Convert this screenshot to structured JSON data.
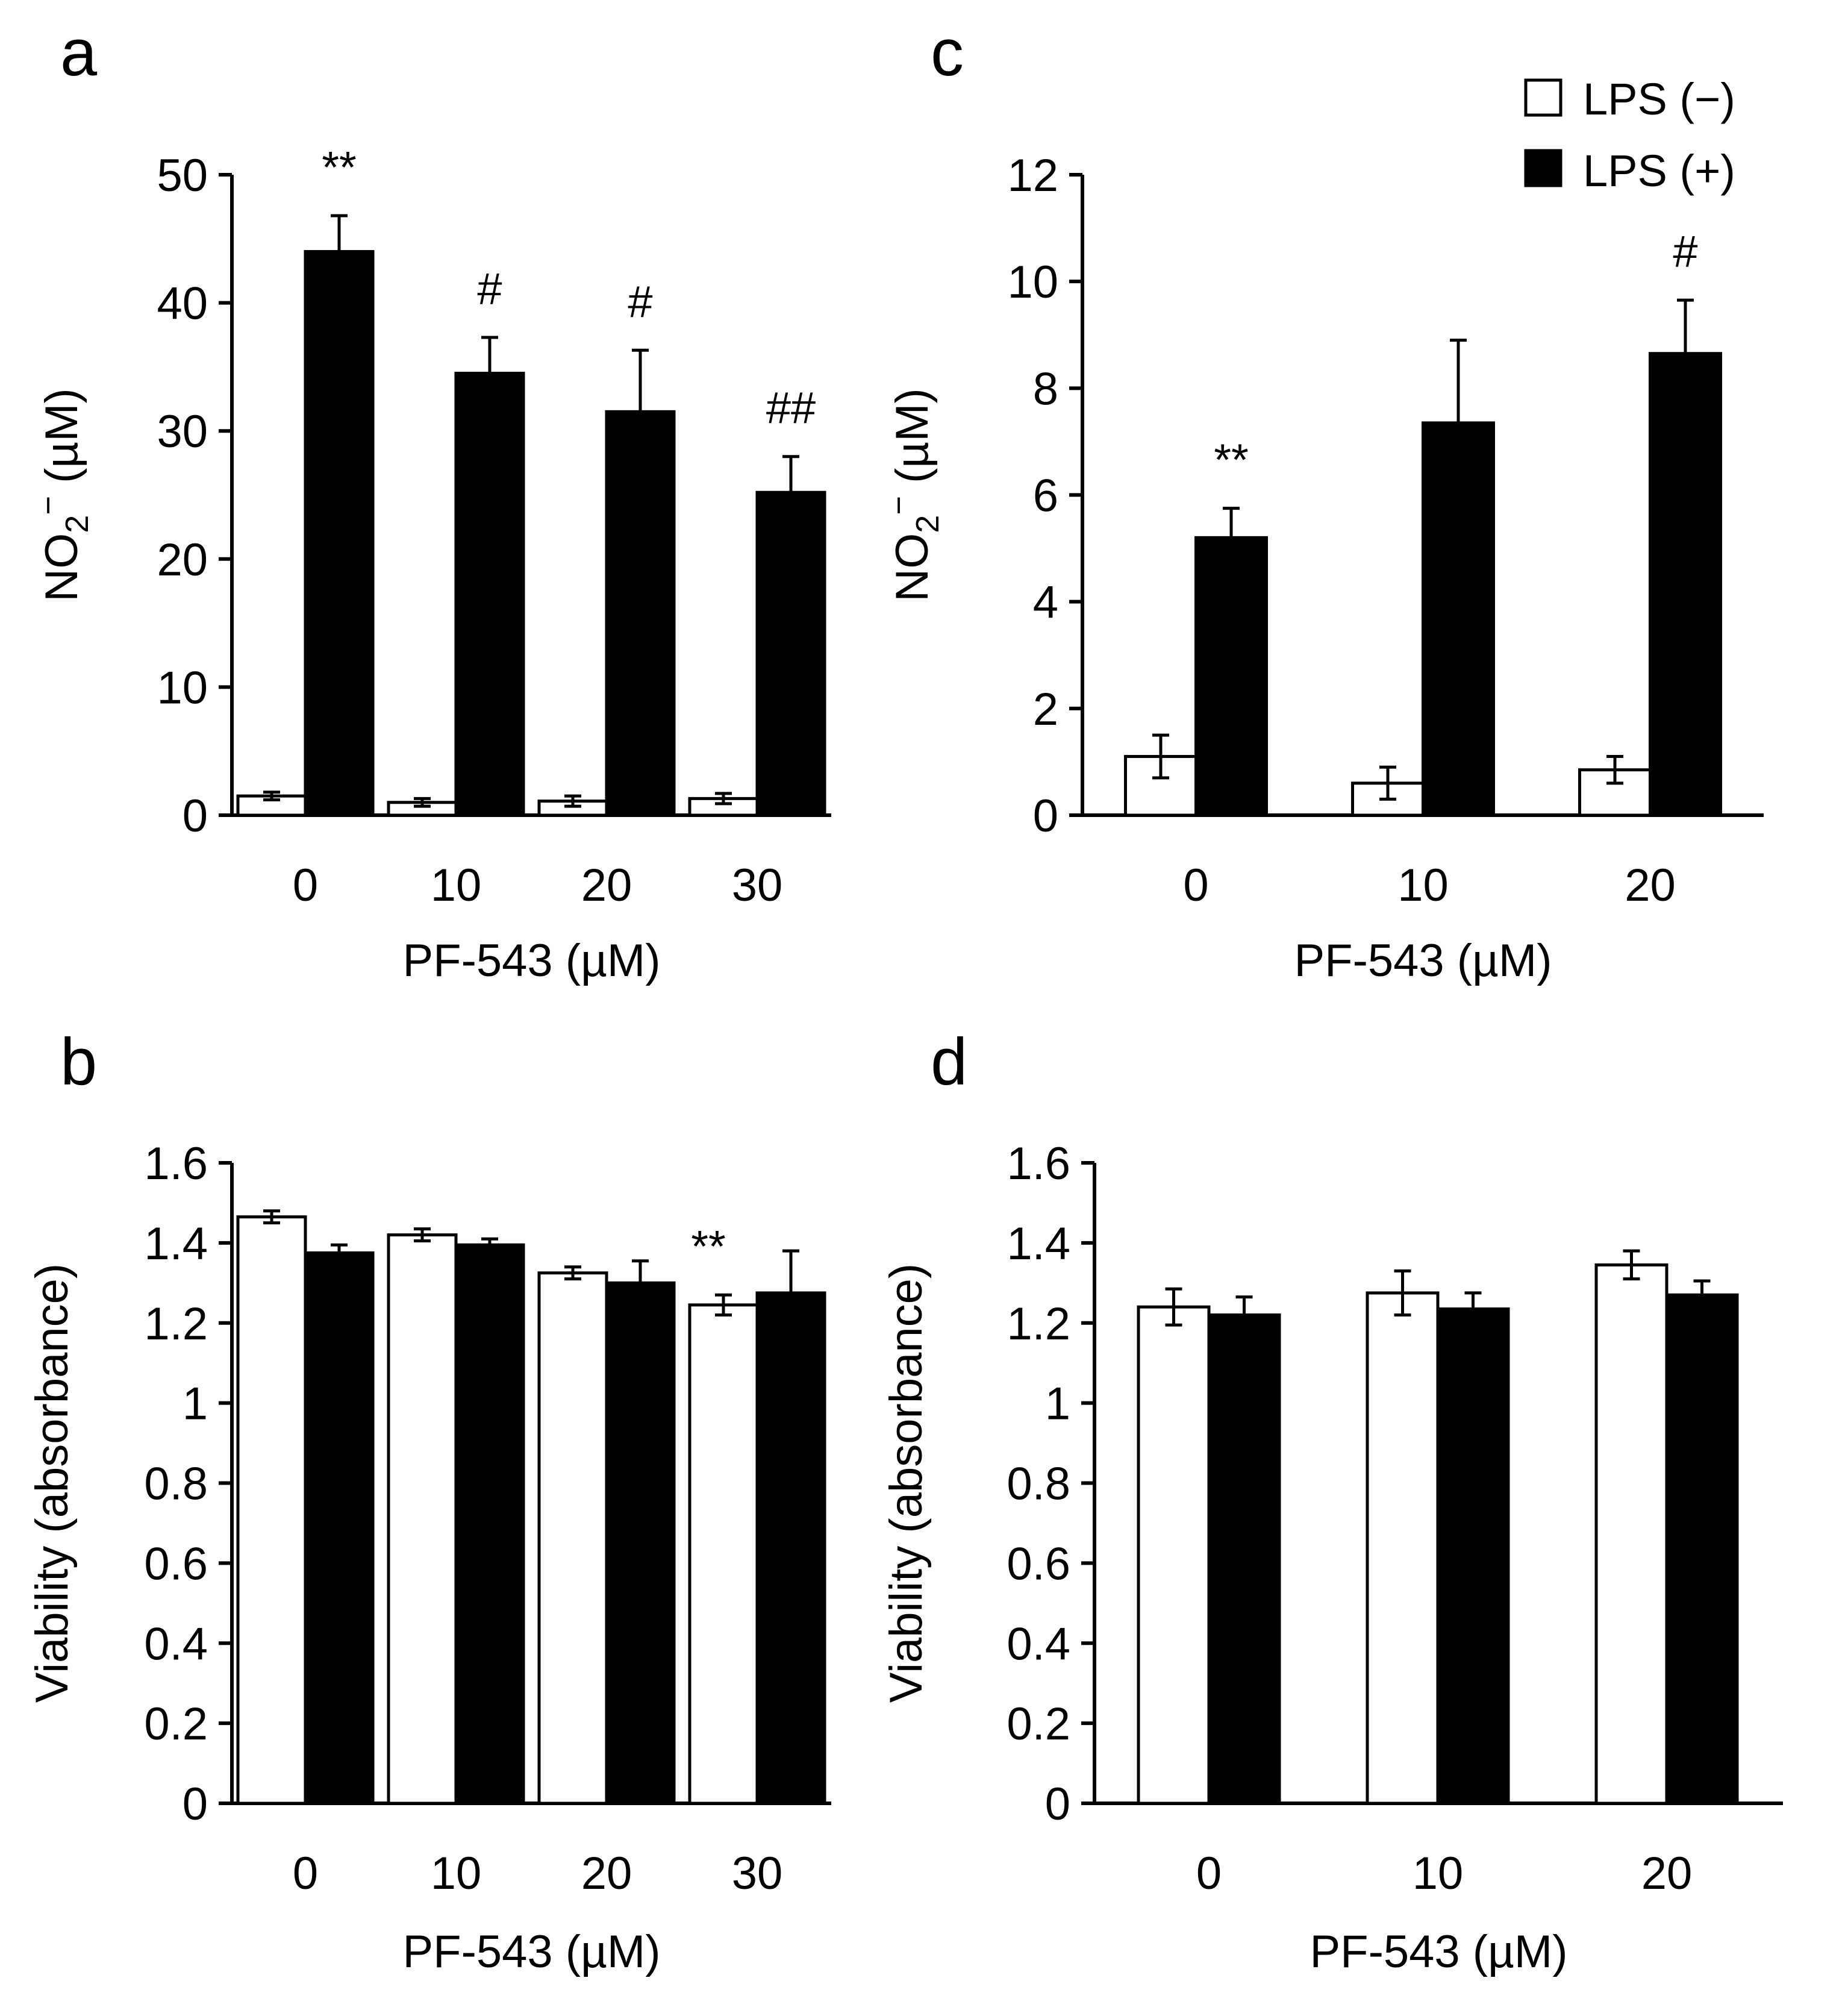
{
  "legend": {
    "entries": [
      {
        "label": "LPS (−)",
        "fill": "#ffffff"
      },
      {
        "label": "LPS (+)",
        "fill": "#000000"
      }
    ]
  },
  "chart_data": [
    {
      "id": "a",
      "panel_label": "a",
      "type": "bar",
      "categories": [
        "0",
        "10",
        "20",
        "30"
      ],
      "xlabel": "PF-543 (µM)",
      "ylabel": {
        "main": "NO",
        "sub": "2",
        "sup": "−",
        "unit": " (µM)"
      },
      "ylim": [
        0,
        50
      ],
      "yticks": [
        {
          "v": 0,
          "label": "0"
        },
        {
          "v": 10,
          "label": "10"
        },
        {
          "v": 20,
          "label": "20"
        },
        {
          "v": 30,
          "label": "30"
        },
        {
          "v": 40,
          "label": "40"
        },
        {
          "v": 50,
          "label": "50"
        }
      ],
      "series": [
        {
          "name": "LPS (−)",
          "fill": "#ffffff",
          "values": [
            1.5,
            1.0,
            1.1,
            1.3
          ],
          "errors": [
            0.3,
            0.3,
            0.4,
            0.4
          ]
        },
        {
          "name": "LPS (+)",
          "fill": "#000000",
          "values": [
            44.0,
            34.5,
            31.5,
            25.2
          ],
          "errors": [
            2.8,
            2.8,
            4.8,
            2.8
          ]
        }
      ],
      "annotations": [
        {
          "text": "**",
          "category": 0,
          "series": 1
        },
        {
          "text": "#",
          "category": 1,
          "series": 1
        },
        {
          "text": "#",
          "category": 2,
          "series": 1
        },
        {
          "text": "##",
          "category": 3,
          "series": 1
        }
      ]
    },
    {
      "id": "b",
      "panel_label": "b",
      "type": "bar",
      "categories": [
        "0",
        "10",
        "20",
        "30"
      ],
      "xlabel": "PF-543 (µM)",
      "ylabel": {
        "main": "Viability (absorbance)"
      },
      "ylim": [
        0,
        1.6
      ],
      "yticks": [
        {
          "v": 0,
          "label": "0"
        },
        {
          "v": 0.2,
          "label": "0.2"
        },
        {
          "v": 0.4,
          "label": "0.4"
        },
        {
          "v": 0.6,
          "label": "0.6"
        },
        {
          "v": 0.8,
          "label": "0.8"
        },
        {
          "v": 1.0,
          "label": "1"
        },
        {
          "v": 1.2,
          "label": "1.2"
        },
        {
          "v": 1.4,
          "label": "1.4"
        },
        {
          "v": 1.6,
          "label": "1.6"
        }
      ],
      "series": [
        {
          "name": "LPS (−)",
          "fill": "#ffffff",
          "values": [
            1.465,
            1.42,
            1.325,
            1.245
          ],
          "errors": [
            0.015,
            0.015,
            0.015,
            0.025
          ]
        },
        {
          "name": "LPS (+)",
          "fill": "#000000",
          "values": [
            1.375,
            1.395,
            1.3,
            1.275
          ],
          "errors": [
            0.02,
            0.015,
            0.055,
            0.105
          ]
        }
      ],
      "annotations": [
        {
          "text": "**",
          "category": 3,
          "series": 0
        }
      ]
    },
    {
      "id": "c",
      "panel_label": "c",
      "type": "bar",
      "categories": [
        "0",
        "10",
        "20"
      ],
      "xlabel": "PF-543 (µM)",
      "ylabel": {
        "main": "NO",
        "sub": "2",
        "sup": "−",
        "unit": " (µM)"
      },
      "ylim": [
        0,
        12
      ],
      "yticks": [
        {
          "v": 0,
          "label": "0"
        },
        {
          "v": 2,
          "label": "2"
        },
        {
          "v": 4,
          "label": "4"
        },
        {
          "v": 6,
          "label": "6"
        },
        {
          "v": 8,
          "label": "8"
        },
        {
          "v": 10,
          "label": "10"
        },
        {
          "v": 12,
          "label": "12"
        }
      ],
      "series": [
        {
          "name": "LPS (−)",
          "fill": "#ffffff",
          "values": [
            1.1,
            0.6,
            0.85
          ],
          "errors": [
            0.4,
            0.3,
            0.25
          ]
        },
        {
          "name": "LPS (+)",
          "fill": "#000000",
          "values": [
            5.2,
            7.35,
            8.65
          ],
          "errors": [
            0.55,
            1.55,
            1.0
          ]
        }
      ],
      "annotations": [
        {
          "text": "**",
          "category": 0,
          "series": 1
        },
        {
          "text": "#",
          "category": 2,
          "series": 1
        }
      ]
    },
    {
      "id": "d",
      "panel_label": "d",
      "type": "bar",
      "categories": [
        "0",
        "10",
        "20"
      ],
      "xlabel": "PF-543 (µM)",
      "ylabel": {
        "main": "Viability (absorbance)"
      },
      "ylim": [
        0,
        1.6
      ],
      "yticks": [
        {
          "v": 0,
          "label": "0"
        },
        {
          "v": 0.2,
          "label": "0.2"
        },
        {
          "v": 0.4,
          "label": "0.4"
        },
        {
          "v": 0.6,
          "label": "0.6"
        },
        {
          "v": 0.8,
          "label": "0.8"
        },
        {
          "v": 1.0,
          "label": "1"
        },
        {
          "v": 1.2,
          "label": "1.2"
        },
        {
          "v": 1.4,
          "label": "1.4"
        },
        {
          "v": 1.6,
          "label": "1.6"
        }
      ],
      "series": [
        {
          "name": "LPS (−)",
          "fill": "#ffffff",
          "values": [
            1.24,
            1.275,
            1.345
          ],
          "errors": [
            0.045,
            0.055,
            0.035
          ]
        },
        {
          "name": "LPS (+)",
          "fill": "#000000",
          "values": [
            1.22,
            1.235,
            1.27
          ],
          "errors": [
            0.045,
            0.04,
            0.035
          ]
        }
      ],
      "annotations": []
    }
  ]
}
